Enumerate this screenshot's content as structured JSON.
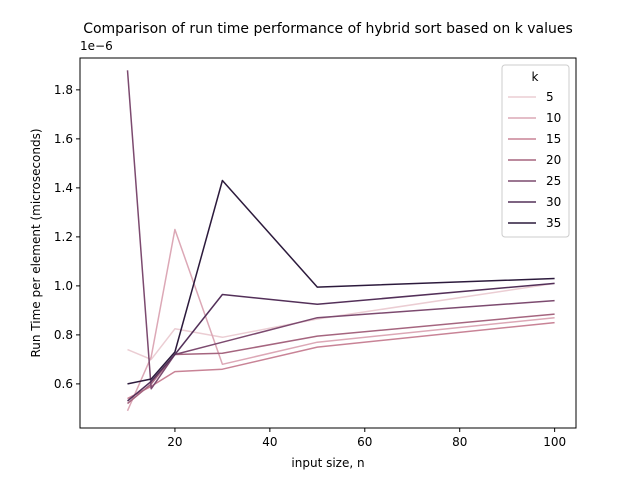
{
  "chart_data": {
    "type": "line",
    "title": "Comparison of run time performance of hybrid sort based on k values",
    "xlabel": "input size, n",
    "ylabel": "Run Time per element (microseconds)",
    "y_offset_label": "1e−6",
    "xlim": [
      0,
      104.5
    ],
    "ylim": [
      0.42,
      1.93
    ],
    "xticks": [
      20,
      40,
      60,
      80,
      100
    ],
    "yticks": [
      0.6,
      0.8,
      1.0,
      1.2,
      1.4,
      1.6,
      1.8
    ],
    "yticklabels": [
      "0.6",
      "0.8",
      "1.0",
      "1.2",
      "1.4",
      "1.6",
      "1.8"
    ],
    "grid": false,
    "legend": {
      "title": "k",
      "placement": "upper right"
    },
    "x": [
      10,
      15,
      20,
      30,
      50,
      100
    ],
    "series": [
      {
        "name": "5",
        "color": "#ebcdd3",
        "values": [
          0.74,
          0.7,
          0.825,
          0.79,
          0.865,
          1.01
        ]
      },
      {
        "name": "10",
        "color": "#dca8b6",
        "values": [
          0.49,
          0.71,
          1.23,
          0.68,
          0.77,
          0.87
        ]
      },
      {
        "name": "15",
        "color": "#c88396",
        "values": [
          0.54,
          0.59,
          0.65,
          0.66,
          0.75,
          0.85
        ]
      },
      {
        "name": "20",
        "color": "#a5657f",
        "values": [
          0.52,
          0.6,
          0.72,
          0.725,
          0.795,
          0.885
        ]
      },
      {
        "name": "25",
        "color": "#7c4a6f",
        "values": [
          1.88,
          0.58,
          0.72,
          0.77,
          0.87,
          0.94
        ]
      },
      {
        "name": "30",
        "color": "#533059",
        "values": [
          0.53,
          0.61,
          0.72,
          0.965,
          0.925,
          1.01
        ]
      },
      {
        "name": "35",
        "color": "#2c1a3c",
        "values": [
          0.6,
          0.62,
          0.73,
          1.43,
          0.995,
          1.03
        ]
      }
    ]
  }
}
